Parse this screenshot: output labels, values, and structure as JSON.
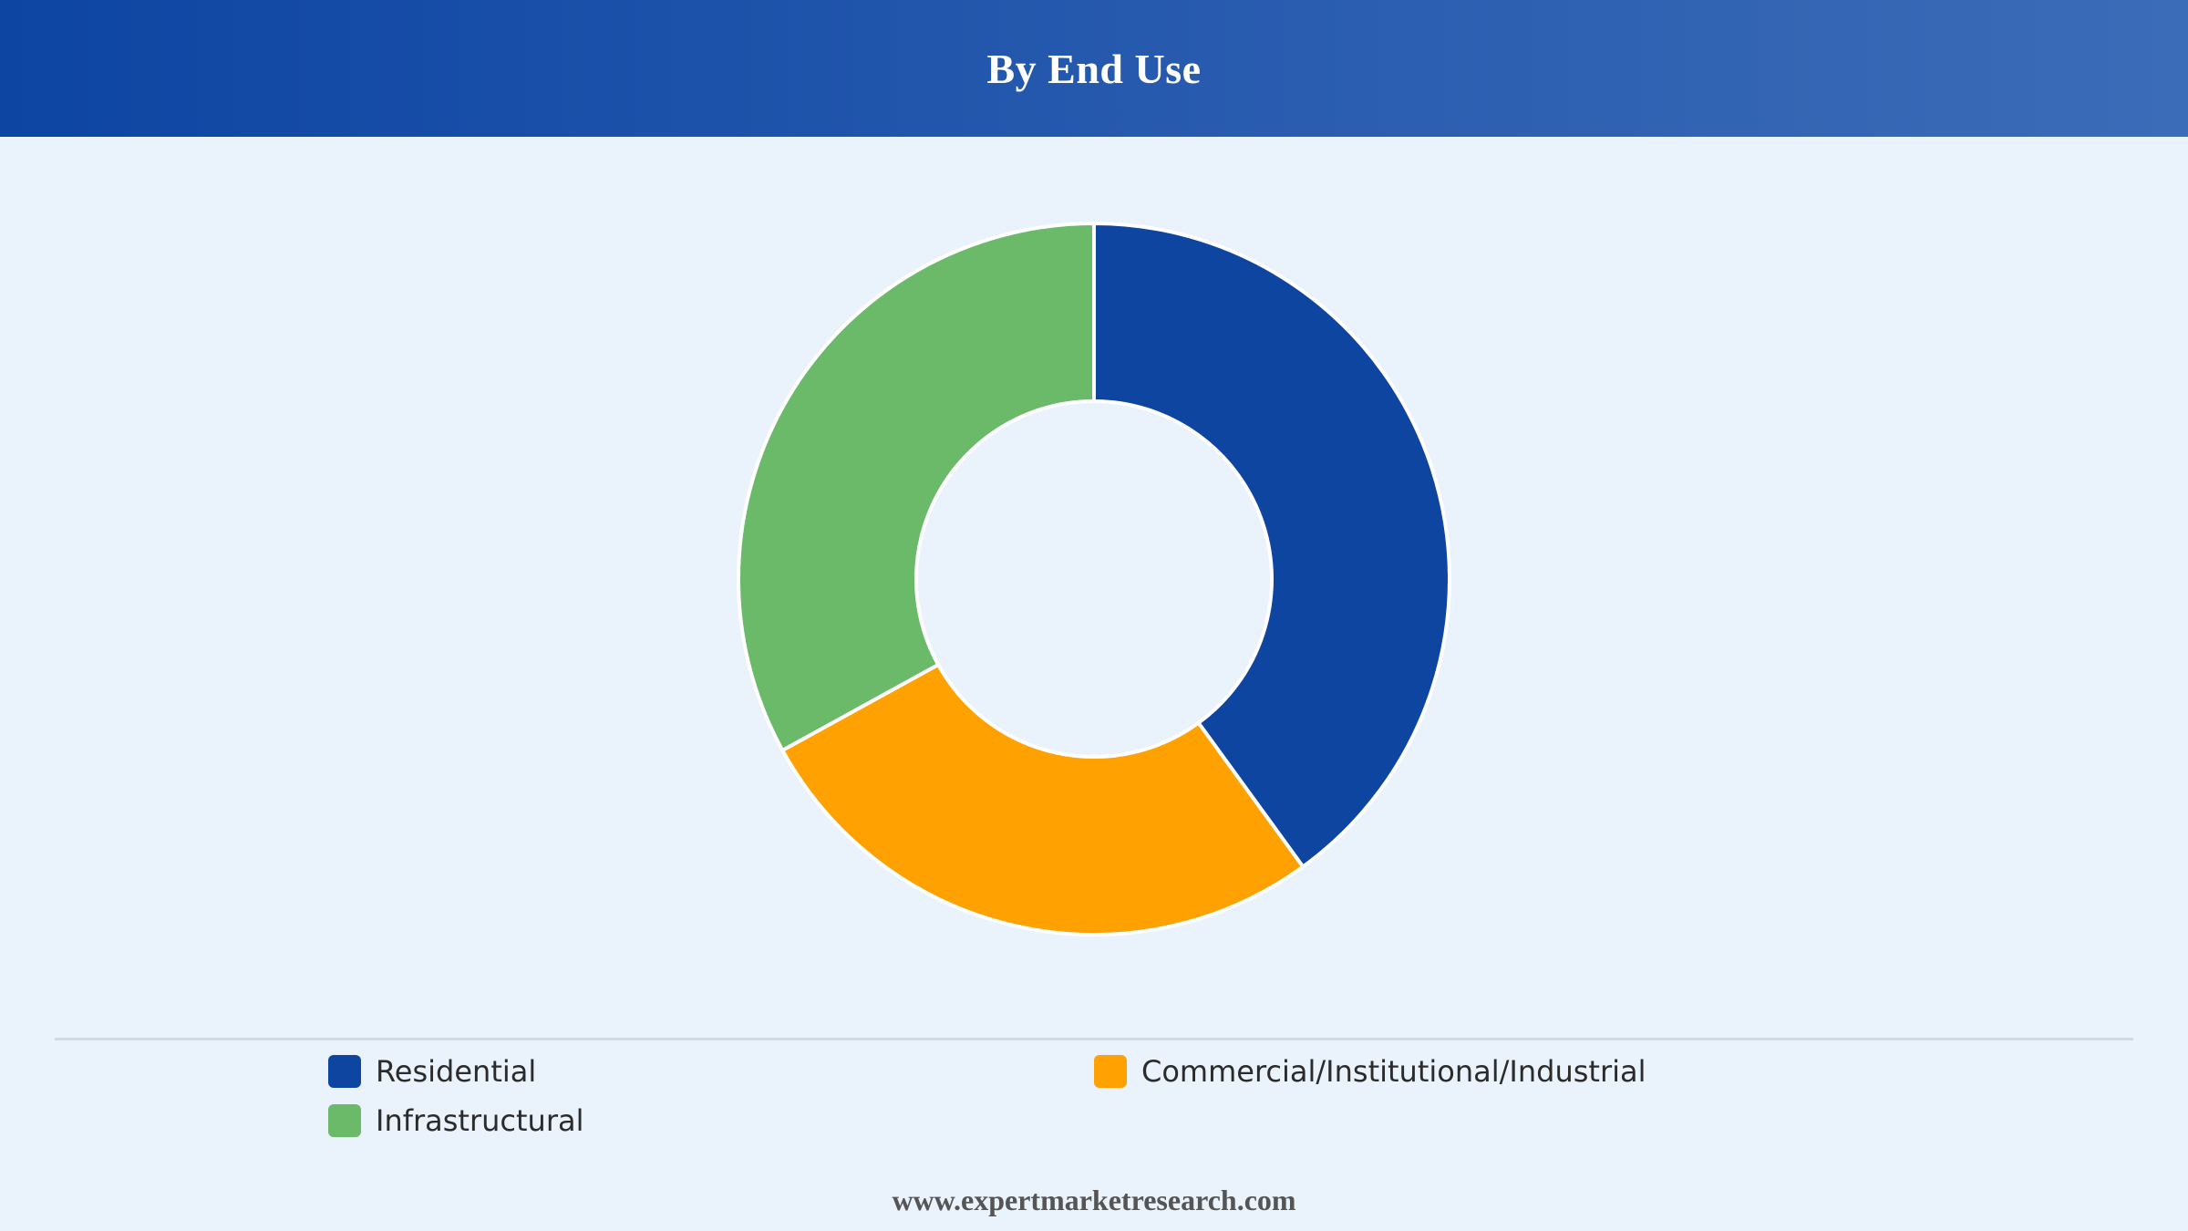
{
  "header": {
    "title": "By End Use"
  },
  "chart_data": {
    "type": "pie",
    "title": "By End Use",
    "donut": true,
    "categories": [
      "Residential",
      "Commercial/Institutional/Industrial",
      "Infrastructural"
    ],
    "values": [
      40,
      27,
      33
    ],
    "colors": [
      "#0e45a0",
      "#ffa100",
      "#6aba6a"
    ],
    "legend": "bottom"
  },
  "legend": {
    "items": [
      {
        "label": "Residential",
        "color": "#0e45a0"
      },
      {
        "label": "Commercial/Institutional/Industrial",
        "color": "#ffa100"
      },
      {
        "label": "Infrastructural",
        "color": "#6aba6a"
      }
    ]
  },
  "footer": {
    "source": "www.expertmarketresearch.com"
  }
}
